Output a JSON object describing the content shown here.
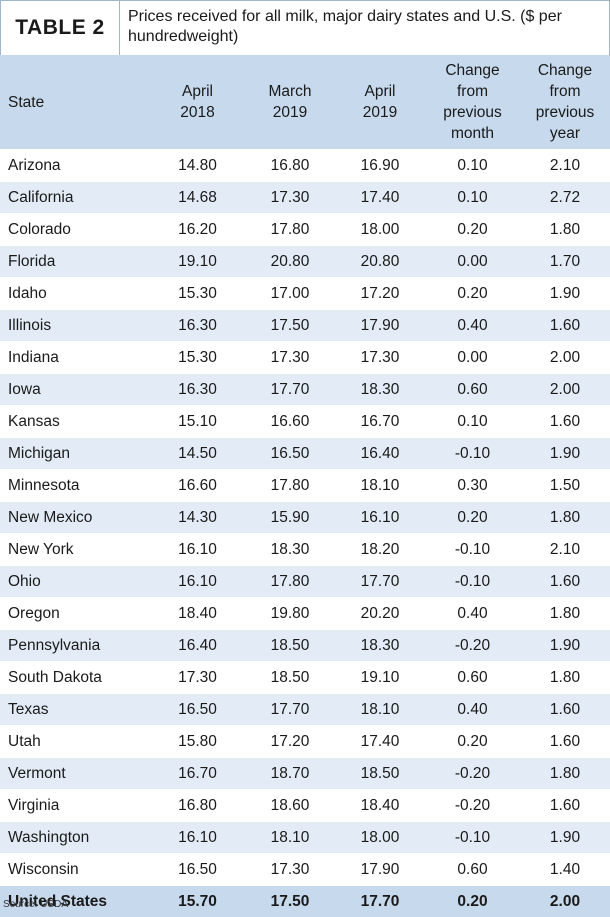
{
  "header": {
    "label": "TABLE 2",
    "title": "Prices received for all milk, major dairy states and U.S. ($ per hundredweight)"
  },
  "table": {
    "columns": [
      {
        "lines": [
          "State"
        ]
      },
      {
        "lines": [
          "April",
          "2018"
        ]
      },
      {
        "lines": [
          "March",
          "2019"
        ]
      },
      {
        "lines": [
          "April",
          "2019"
        ]
      },
      {
        "lines": [
          "Change",
          "from",
          "previous",
          "month"
        ]
      },
      {
        "lines": [
          "Change",
          "from",
          "previous",
          "year"
        ]
      }
    ],
    "rows": [
      [
        "Arizona",
        "14.80",
        "16.80",
        "16.90",
        "0.10",
        "2.10"
      ],
      [
        "California",
        "14.68",
        "17.30",
        "17.40",
        "0.10",
        "2.72"
      ],
      [
        "Colorado",
        "16.20",
        "17.80",
        "18.00",
        "0.20",
        "1.80"
      ],
      [
        "Florida",
        "19.10",
        "20.80",
        "20.80",
        "0.00",
        "1.70"
      ],
      [
        "Idaho",
        "15.30",
        "17.00",
        "17.20",
        "0.20",
        "1.90"
      ],
      [
        "Illinois",
        "16.30",
        "17.50",
        "17.90",
        "0.40",
        "1.60"
      ],
      [
        "Indiana",
        "15.30",
        "17.30",
        "17.30",
        "0.00",
        "2.00"
      ],
      [
        "Iowa",
        "16.30",
        "17.70",
        "18.30",
        "0.60",
        "2.00"
      ],
      [
        "Kansas",
        "15.10",
        "16.60",
        "16.70",
        "0.10",
        "1.60"
      ],
      [
        "Michigan",
        "14.50",
        "16.50",
        "16.40",
        "-0.10",
        "1.90"
      ],
      [
        "Minnesota",
        "16.60",
        "17.80",
        "18.10",
        "0.30",
        "1.50"
      ],
      [
        "New Mexico",
        "14.30",
        "15.90",
        "16.10",
        "0.20",
        "1.80"
      ],
      [
        "New York",
        "16.10",
        "18.30",
        "18.20",
        "-0.10",
        "2.10"
      ],
      [
        "Ohio",
        "16.10",
        "17.80",
        "17.70",
        "-0.10",
        "1.60"
      ],
      [
        "Oregon",
        "18.40",
        "19.80",
        "20.20",
        "0.40",
        "1.80"
      ],
      [
        "Pennsylvania",
        "16.40",
        "18.50",
        "18.30",
        "-0.20",
        "1.90"
      ],
      [
        "South Dakota",
        "17.30",
        "18.50",
        "19.10",
        "0.60",
        "1.80"
      ],
      [
        "Texas",
        "16.50",
        "17.70",
        "18.10",
        "0.40",
        "1.60"
      ],
      [
        "Utah",
        "15.80",
        "17.20",
        "17.40",
        "0.20",
        "1.60"
      ],
      [
        "Vermont",
        "16.70",
        "18.70",
        "18.50",
        "-0.20",
        "1.80"
      ],
      [
        "Virginia",
        "16.80",
        "18.60",
        "18.40",
        "-0.20",
        "1.60"
      ],
      [
        "Washington",
        "16.10",
        "18.10",
        "18.00",
        "-0.10",
        "1.90"
      ],
      [
        "Wisconsin",
        "16.50",
        "17.30",
        "17.90",
        "0.60",
        "1.40"
      ],
      [
        "United States",
        "15.70",
        "17.50",
        "17.70",
        "0.20",
        "2.00"
      ]
    ]
  },
  "footer": {
    "source": "Source: USDA"
  }
}
